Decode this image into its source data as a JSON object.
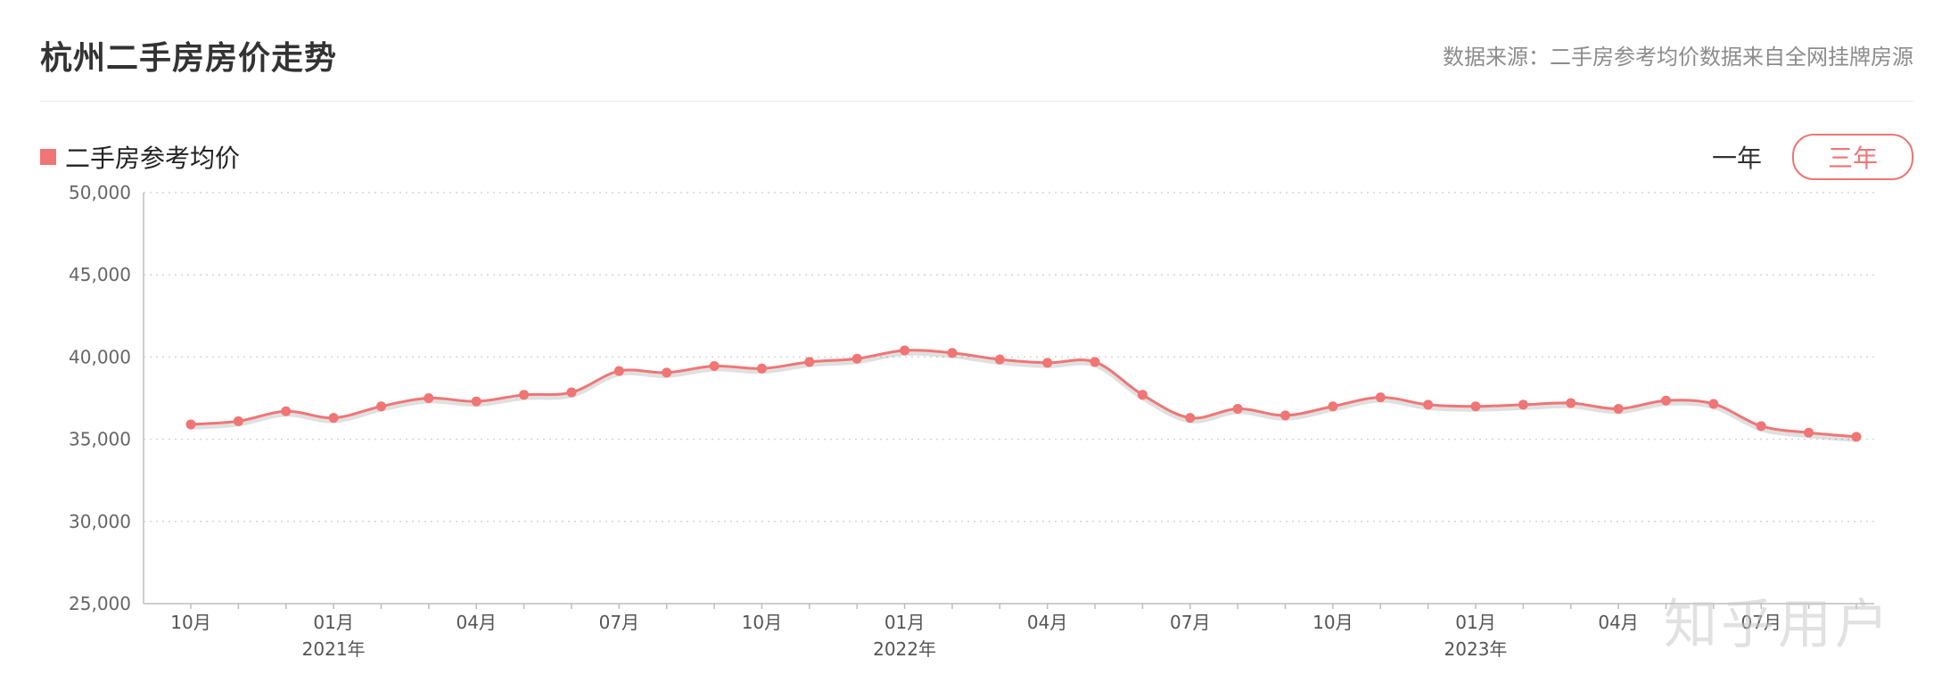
{
  "header": {
    "title": "杭州二手房房价走势",
    "source": "数据来源：二手房参考均价数据来自全网挂牌房源"
  },
  "legend": {
    "label": "二手房参考均价",
    "color": "#f07575"
  },
  "range_buttons": [
    {
      "label": "一年",
      "active": false
    },
    {
      "label": "三年",
      "active": true
    }
  ],
  "watermark": "知乎用户",
  "chart_data": {
    "type": "line",
    "title": "",
    "xlabel": "",
    "ylabel": "",
    "ylim": [
      25000,
      50000
    ],
    "y_ticks": [
      "50,000",
      "45,000",
      "40,000",
      "35,000",
      "30,000",
      "25,000"
    ],
    "y_tick_values": [
      50000,
      45000,
      40000,
      35000,
      30000,
      25000
    ],
    "grid": true,
    "line_color": "#f07575",
    "x_tick_labels": [
      {
        "index": 0,
        "month": "10月",
        "year": ""
      },
      {
        "index": 3,
        "month": "01月",
        "year": "2021年"
      },
      {
        "index": 6,
        "month": "04月",
        "year": ""
      },
      {
        "index": 9,
        "month": "07月",
        "year": ""
      },
      {
        "index": 12,
        "month": "10月",
        "year": ""
      },
      {
        "index": 15,
        "month": "01月",
        "year": "2022年"
      },
      {
        "index": 18,
        "month": "04月",
        "year": ""
      },
      {
        "index": 21,
        "month": "07月",
        "year": ""
      },
      {
        "index": 24,
        "month": "10月",
        "year": ""
      },
      {
        "index": 27,
        "month": "01月",
        "year": "2023年"
      },
      {
        "index": 30,
        "month": "04月",
        "year": ""
      },
      {
        "index": 33,
        "month": "07月",
        "year": ""
      }
    ],
    "series": [
      {
        "name": "二手房参考均价",
        "values": [
          35900,
          36100,
          36700,
          36300,
          37000,
          37500,
          37300,
          37700,
          37850,
          39150,
          39050,
          39450,
          39300,
          39700,
          39900,
          40400,
          40250,
          39850,
          39650,
          39700,
          37700,
          36300,
          36850,
          36450,
          37000,
          37550,
          37100,
          37000,
          37100,
          37200,
          36850,
          37350,
          37150,
          35800,
          35400,
          35150
        ]
      }
    ]
  }
}
